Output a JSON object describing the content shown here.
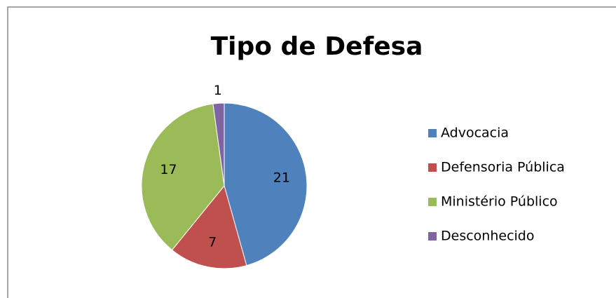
{
  "chart_data": {
    "type": "pie",
    "title": "Tipo de Defesa",
    "categories": [
      "Advocacia",
      "Defensoria Pública",
      "Ministério Público",
      "Desconhecido"
    ],
    "values": [
      21,
      7,
      17,
      1
    ],
    "colors": [
      "#4f81bd",
      "#c0504d",
      "#9bbb59",
      "#8064a2"
    ],
    "legend": "right"
  }
}
